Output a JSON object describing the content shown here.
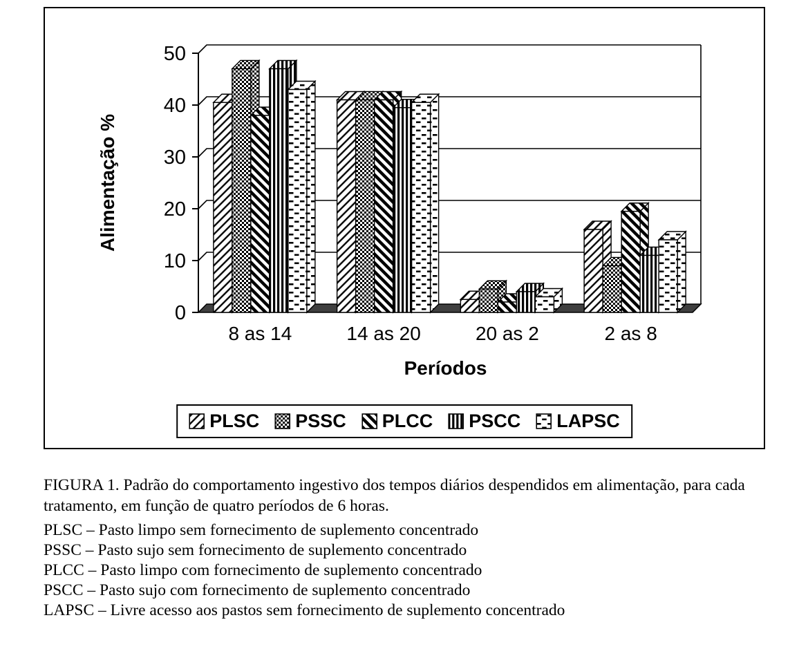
{
  "figure": {
    "caption": "FIGURA 1. Padrão do comportamento ingestivo dos tempos diários despendidos em alimentação, para cada tratamento, em função de quatro períodos de 6 horas.",
    "definitions": [
      "PLSC – Pasto limpo sem fornecimento de suplemento concentrado",
      "PSSC – Pasto sujo sem fornecimento de suplemento concentrado",
      "PLCC – Pasto limpo com fornecimento de suplemento concentrado",
      "PSCC – Pasto sujo com fornecimento de suplemento concentrado",
      "LAPSC – Livre acesso aos pastos sem fornecimento de suplemento concentrado"
    ]
  },
  "chart_data": {
    "type": "bar",
    "style": "3d-column",
    "title": "",
    "xlabel": "Períodos",
    "ylabel": "Alimentação %",
    "ylim": [
      0,
      50
    ],
    "yticks": [
      0,
      10,
      20,
      30,
      40,
      50
    ],
    "grid": true,
    "legend_position": "bottom",
    "categories": [
      "8 as 14",
      "14 as 20",
      "20 as 2",
      "2 as 8"
    ],
    "series": [
      {
        "name": "PLSC",
        "pattern": "diagonal-light",
        "values": [
          40.5,
          41,
          2.5,
          16
        ]
      },
      {
        "name": "PSSC",
        "pattern": "dense-dots",
        "values": [
          47,
          41,
          4.5,
          9
        ]
      },
      {
        "name": "PLCC",
        "pattern": "diagonal-heavy",
        "values": [
          38,
          41,
          2,
          19.5
        ]
      },
      {
        "name": "PSCC",
        "pattern": "vertical-lines",
        "values": [
          47,
          39.5,
          4,
          11
        ]
      },
      {
        "name": "LAPSC",
        "pattern": "dashed",
        "values": [
          43,
          40.5,
          3,
          14
        ]
      }
    ]
  },
  "colors": {
    "bar_stroke": "#000000",
    "floor": "#3f3f3f",
    "background": "#ffffff"
  }
}
